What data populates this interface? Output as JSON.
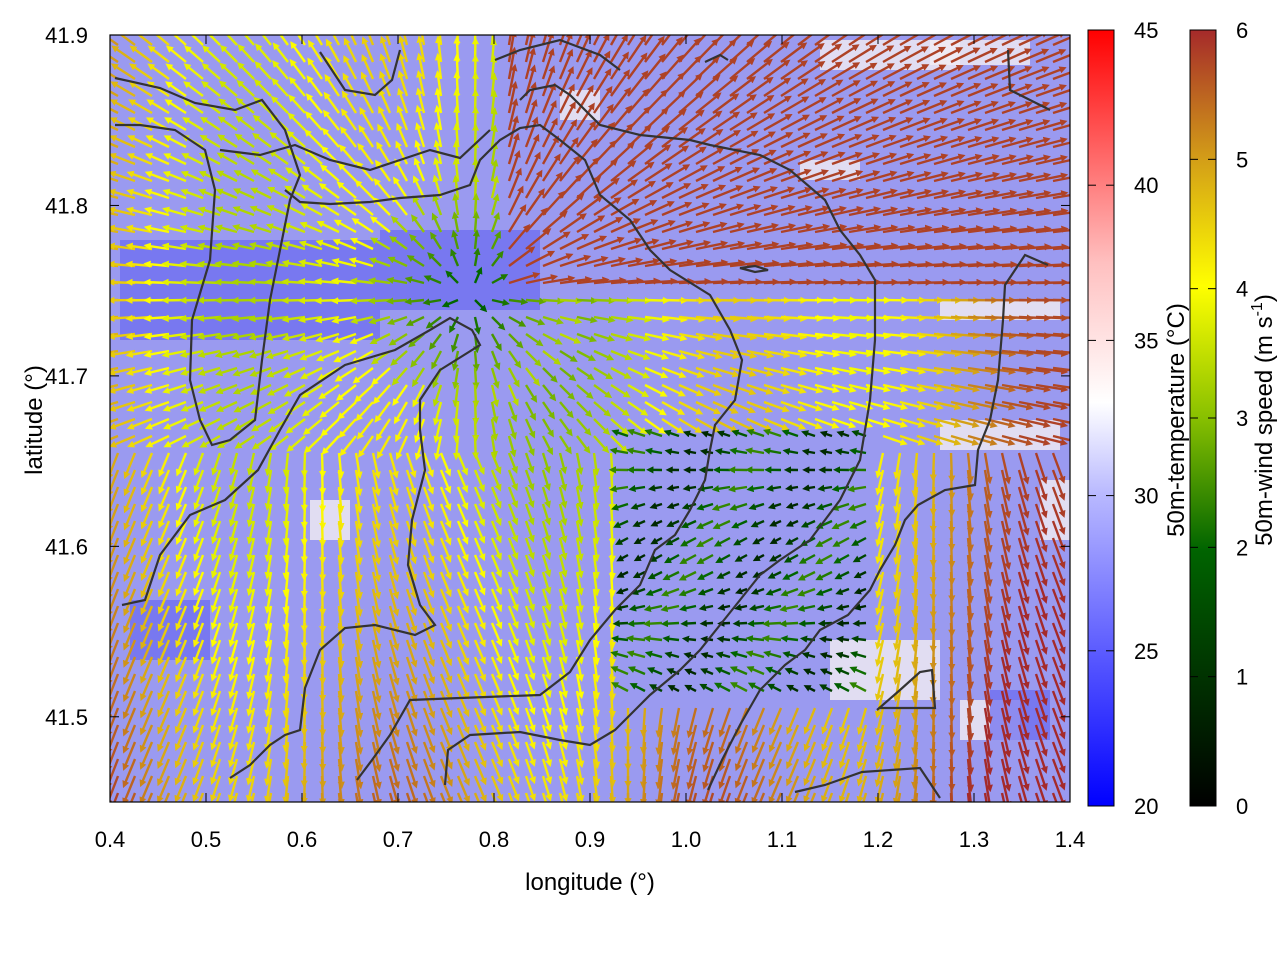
{
  "chart_data": {
    "type": "heatmap",
    "overlay": "wind-vector-field",
    "xlabel": "longitude (°)",
    "ylabel": "latitude (°)",
    "xlim": [
      0.4,
      1.4
    ],
    "ylim": [
      41.45,
      41.9
    ],
    "x_ticks": [
      "0.4",
      "0.5",
      "0.6",
      "0.7",
      "0.8",
      "0.9",
      "1.0",
      "1.1",
      "1.2",
      "1.3",
      "1.4"
    ],
    "y_ticks": [
      "41.5",
      "41.6",
      "41.7",
      "41.8",
      "41.9"
    ],
    "grid": false,
    "temperature_colorbar": {
      "label": "50m-temperature (°C)",
      "range": [
        20,
        45
      ],
      "ticks": [
        "20",
        "25",
        "30",
        "35",
        "40",
        "45"
      ],
      "colors": [
        "#0000ff",
        "#ffffff",
        "#ff0000"
      ]
    },
    "wind_colorbar": {
      "label": "50m-wind speed (m s",
      "label_sup": "-1",
      "label_end": ")",
      "range": [
        0,
        6
      ],
      "ticks": [
        "0",
        "1",
        "2",
        "3",
        "4",
        "5",
        "6"
      ],
      "colors": [
        "#000000",
        "#006400",
        "#ffff00",
        "#d4a017",
        "#a52a2a"
      ]
    },
    "contour_color": "#333333"
  }
}
